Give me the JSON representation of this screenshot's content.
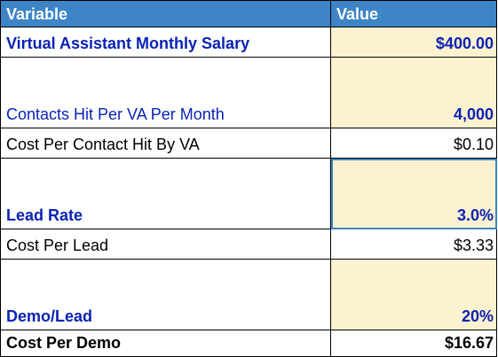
{
  "header": {
    "variable": "Variable",
    "value": "Value"
  },
  "rows": [
    {
      "label": "Virtual Assistant Monthly Salary",
      "value": "$400.00"
    },
    {
      "label": "Contacts Hit Per VA Per Month",
      "value": "4,000"
    },
    {
      "label": "Cost Per Contact Hit By VA",
      "value": "$0.10"
    },
    {
      "label": "Lead Rate",
      "value": "3.0%"
    },
    {
      "label": "Cost Per Lead",
      "value": "$3.33"
    },
    {
      "label": "Demo/Lead",
      "value": "20%"
    },
    {
      "label": "Cost Per Demo",
      "value": "$16.67"
    }
  ],
  "colors": {
    "header_bg": "#3d85c6",
    "input_cell_bg": "#fdf2d0",
    "input_text": "#0b23b4"
  }
}
